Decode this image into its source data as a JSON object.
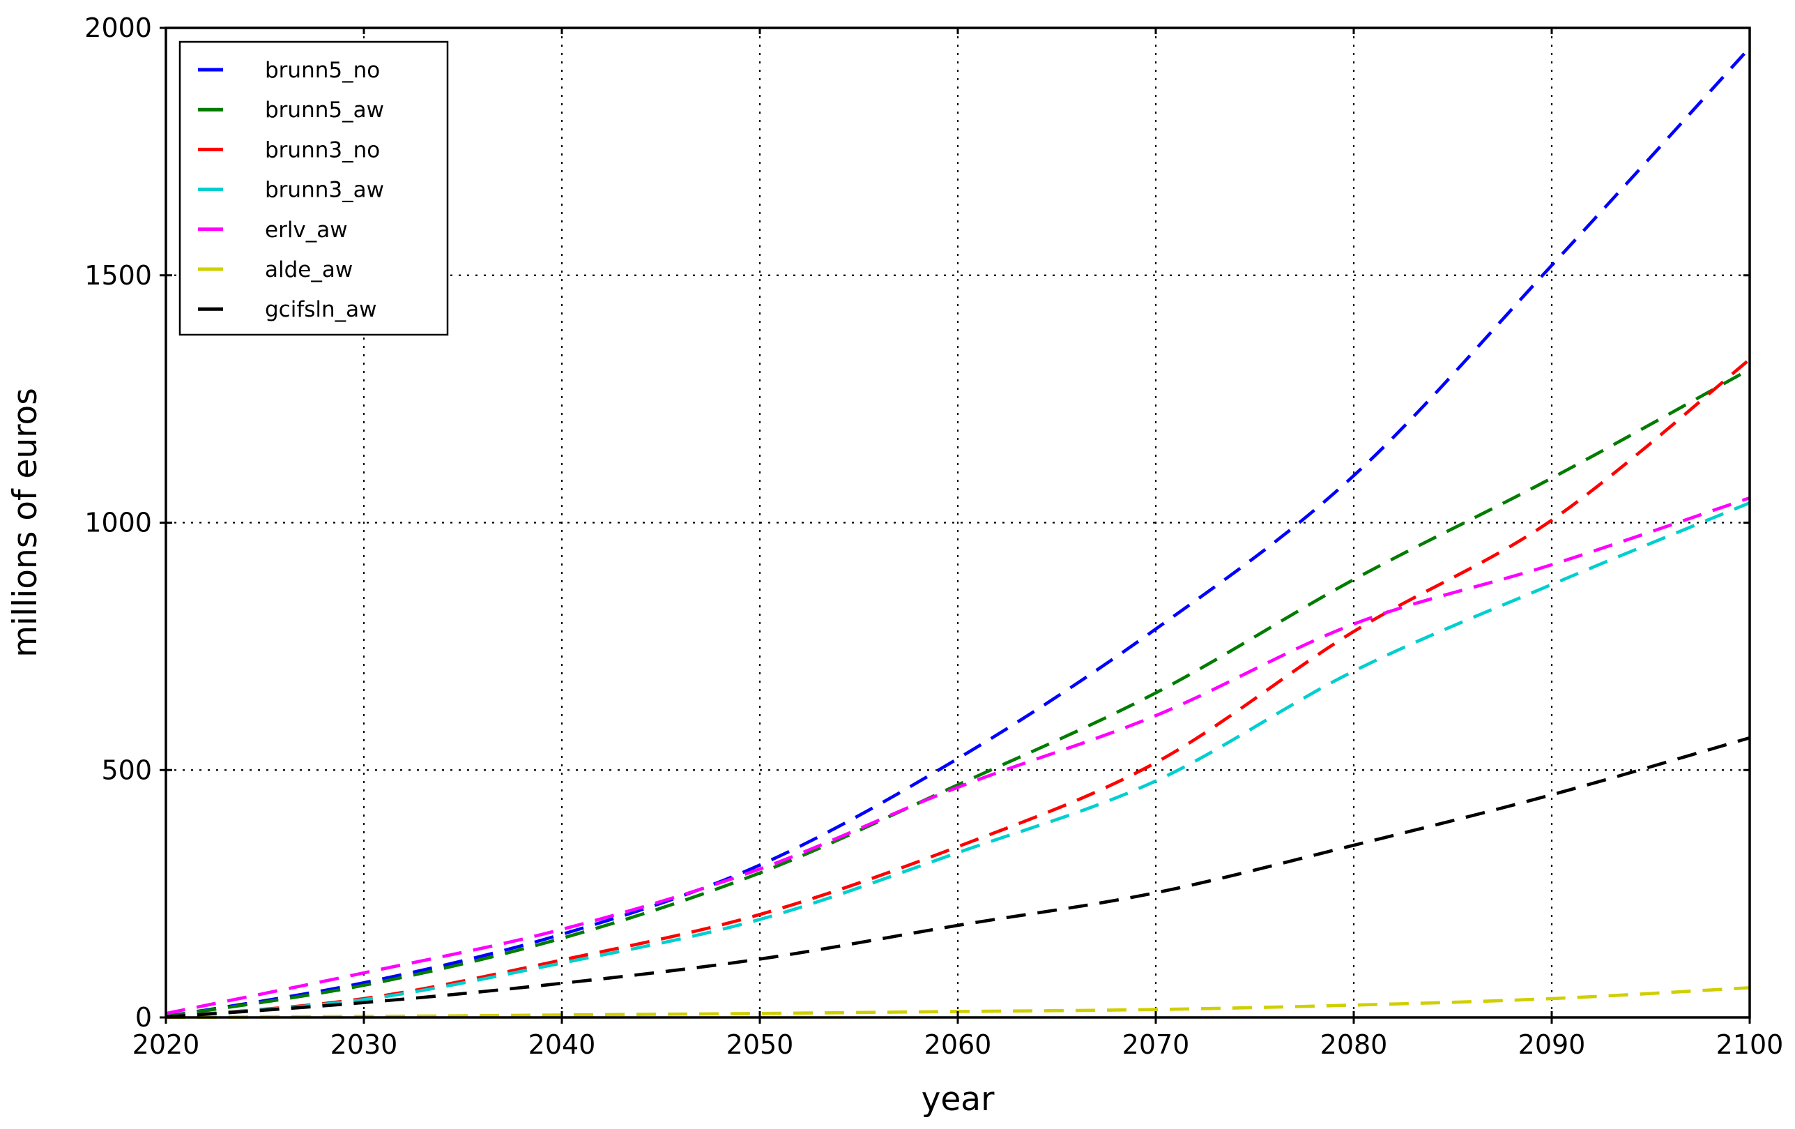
{
  "figure": {
    "background": "#ffffff",
    "frame_color": "#000000",
    "grid_color": "#000000"
  },
  "chart_data": {
    "type": "line",
    "title": "",
    "xlabel": "year",
    "ylabel": "millions of euros",
    "xlim": [
      2020,
      2100
    ],
    "ylim": [
      0,
      2000
    ],
    "xticks": [
      2020,
      2030,
      2040,
      2050,
      2060,
      2070,
      2080,
      2090,
      2100
    ],
    "yticks": [
      0,
      500,
      1000,
      1500,
      2000
    ],
    "grid": "dotted",
    "grid_on": true,
    "legend_position": "upper-left",
    "line_style": "dashed",
    "x": [
      2020,
      2030,
      2040,
      2050,
      2060,
      2070,
      2080,
      2090,
      2100
    ],
    "series": [
      {
        "name": "brunn5_no",
        "color": "#0000ff",
        "values": [
          2,
          70,
          168,
          308,
          523,
          785,
          1095,
          1520,
          1960
        ]
      },
      {
        "name": "brunn5_aw",
        "color": "#007c00",
        "values": [
          2,
          65,
          160,
          292,
          470,
          656,
          885,
          1090,
          1310
        ]
      },
      {
        "name": "brunn3_no",
        "color": "#ff0000",
        "values": [
          1,
          38,
          116,
          208,
          345,
          515,
          780,
          1005,
          1330
        ]
      },
      {
        "name": "brunn3_aw",
        "color": "#00cfcf",
        "values": [
          1,
          36,
          110,
          198,
          333,
          478,
          700,
          875,
          1040
        ]
      },
      {
        "name": "erlv_aw",
        "color": "#ff00ff",
        "values": [
          8,
          90,
          178,
          300,
          465,
          610,
          795,
          915,
          1050
        ]
      },
      {
        "name": "alde_aw",
        "color": "#cfcf00",
        "values": [
          0,
          2,
          5,
          8,
          12,
          16,
          25,
          38,
          60
        ]
      },
      {
        "name": "gcifsln_aw",
        "color": "#000000",
        "values": [
          1,
          30,
          69,
          118,
          186,
          252,
          348,
          450,
          565
        ]
      }
    ]
  }
}
